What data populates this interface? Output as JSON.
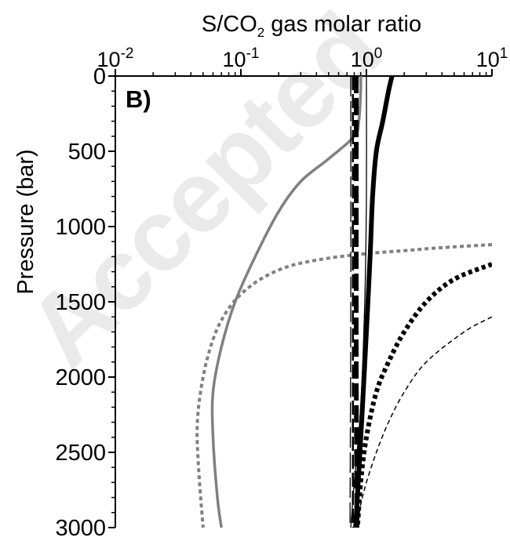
{
  "chart_data": {
    "type": "line",
    "panel_label": "B)",
    "xlabel": "S/CO",
    "xlabel_subscript": "2",
    "xlabel_suffix": " gas molar ratio",
    "ylabel": "Pressure (bar)",
    "x_scale": "log",
    "xlim": [
      0.01,
      10
    ],
    "ylim": [
      0,
      3000
    ],
    "y_inverted": true,
    "x_axis_position": "top",
    "x_ticks": [
      {
        "base": "10",
        "exp": "-2",
        "value": 0.01
      },
      {
        "base": "10",
        "exp": "-1",
        "value": 0.1
      },
      {
        "base": "10",
        "exp": "0",
        "value": 1
      },
      {
        "base": "10",
        "exp": "1",
        "value": 10
      }
    ],
    "y_ticks": [
      "0",
      "500",
      "1000",
      "1500",
      "2000",
      "2500",
      "3000"
    ],
    "y_tick_values": [
      0,
      500,
      1000,
      1500,
      2000,
      2500,
      3000
    ],
    "grid": false,
    "watermark": "Accepted",
    "series": [
      {
        "color": "#808080",
        "style": "solid",
        "width": 3.5,
        "points": [
          [
            0.9,
            0
          ],
          [
            0.9,
            100
          ],
          [
            0.87,
            300
          ],
          [
            0.8,
            400
          ],
          [
            0.5,
            550
          ],
          [
            0.3,
            700
          ],
          [
            0.2,
            900
          ],
          [
            0.13,
            1200
          ],
          [
            0.09,
            1500
          ],
          [
            0.07,
            1800
          ],
          [
            0.06,
            2100
          ],
          [
            0.06,
            2400
          ],
          [
            0.065,
            2800
          ],
          [
            0.07,
            3000
          ]
        ]
      },
      {
        "color": "#808080",
        "style": "dotted",
        "width": 4,
        "points": [
          [
            10,
            1120
          ],
          [
            4,
            1140
          ],
          [
            2,
            1160
          ],
          [
            1,
            1180
          ],
          [
            0.5,
            1210
          ],
          [
            0.25,
            1260
          ],
          [
            0.15,
            1340
          ],
          [
            0.1,
            1450
          ],
          [
            0.075,
            1580
          ],
          [
            0.06,
            1750
          ],
          [
            0.05,
            2000
          ],
          [
            0.045,
            2300
          ],
          [
            0.046,
            2600
          ],
          [
            0.05,
            3000
          ]
        ]
      },
      {
        "color": "#000000",
        "style": "solid",
        "width": 6,
        "points": [
          [
            1.6,
            0
          ],
          [
            1.5,
            100
          ],
          [
            1.35,
            300
          ],
          [
            1.2,
            500
          ],
          [
            1.12,
            800
          ],
          [
            1.07,
            1200
          ],
          [
            1.0,
            1700
          ],
          [
            0.93,
            2200
          ],
          [
            0.86,
            2700
          ],
          [
            0.82,
            3000
          ]
        ]
      },
      {
        "color": "#000000",
        "style": "solid",
        "width": 1.3,
        "points": [
          [
            1,
            0
          ],
          [
            1,
            800
          ],
          [
            0.97,
            1500
          ],
          [
            0.9,
            2200
          ],
          [
            0.8,
            2700
          ],
          [
            0.75,
            3000
          ]
        ]
      },
      {
        "color": "#000000",
        "style": "dashed-thick",
        "width": 6,
        "points": [
          [
            0.83,
            0
          ],
          [
            0.83,
            1000
          ],
          [
            0.83,
            2000
          ],
          [
            0.84,
            3000
          ]
        ]
      },
      {
        "color": "#000000",
        "style": "dashed-medium",
        "width": 2.5,
        "points": [
          [
            0.78,
            0
          ],
          [
            0.78,
            1500
          ],
          [
            0.78,
            3000
          ]
        ]
      },
      {
        "color": "#000000",
        "style": "dashed-thin",
        "width": 1.3,
        "points": [
          [
            0.75,
            0
          ],
          [
            0.75,
            1500
          ],
          [
            0.74,
            3000
          ]
        ]
      },
      {
        "color": "#000000",
        "style": "dotted",
        "width": 6,
        "points": [
          [
            10,
            1250
          ],
          [
            5,
            1350
          ],
          [
            3,
            1500
          ],
          [
            2,
            1700
          ],
          [
            1.5,
            1900
          ],
          [
            1.2,
            2100
          ],
          [
            1.0,
            2400
          ],
          [
            0.9,
            2700
          ],
          [
            0.85,
            3000
          ]
        ]
      },
      {
        "color": "#000000",
        "style": "dashed-thin-short",
        "width": 1.5,
        "points": [
          [
            10,
            1600
          ],
          [
            6,
            1700
          ],
          [
            3,
            1900
          ],
          [
            2,
            2100
          ],
          [
            1.5,
            2300
          ],
          [
            1.2,
            2500
          ],
          [
            1.0,
            2700
          ],
          [
            0.9,
            2850
          ],
          [
            0.85,
            3000
          ]
        ]
      }
    ]
  }
}
